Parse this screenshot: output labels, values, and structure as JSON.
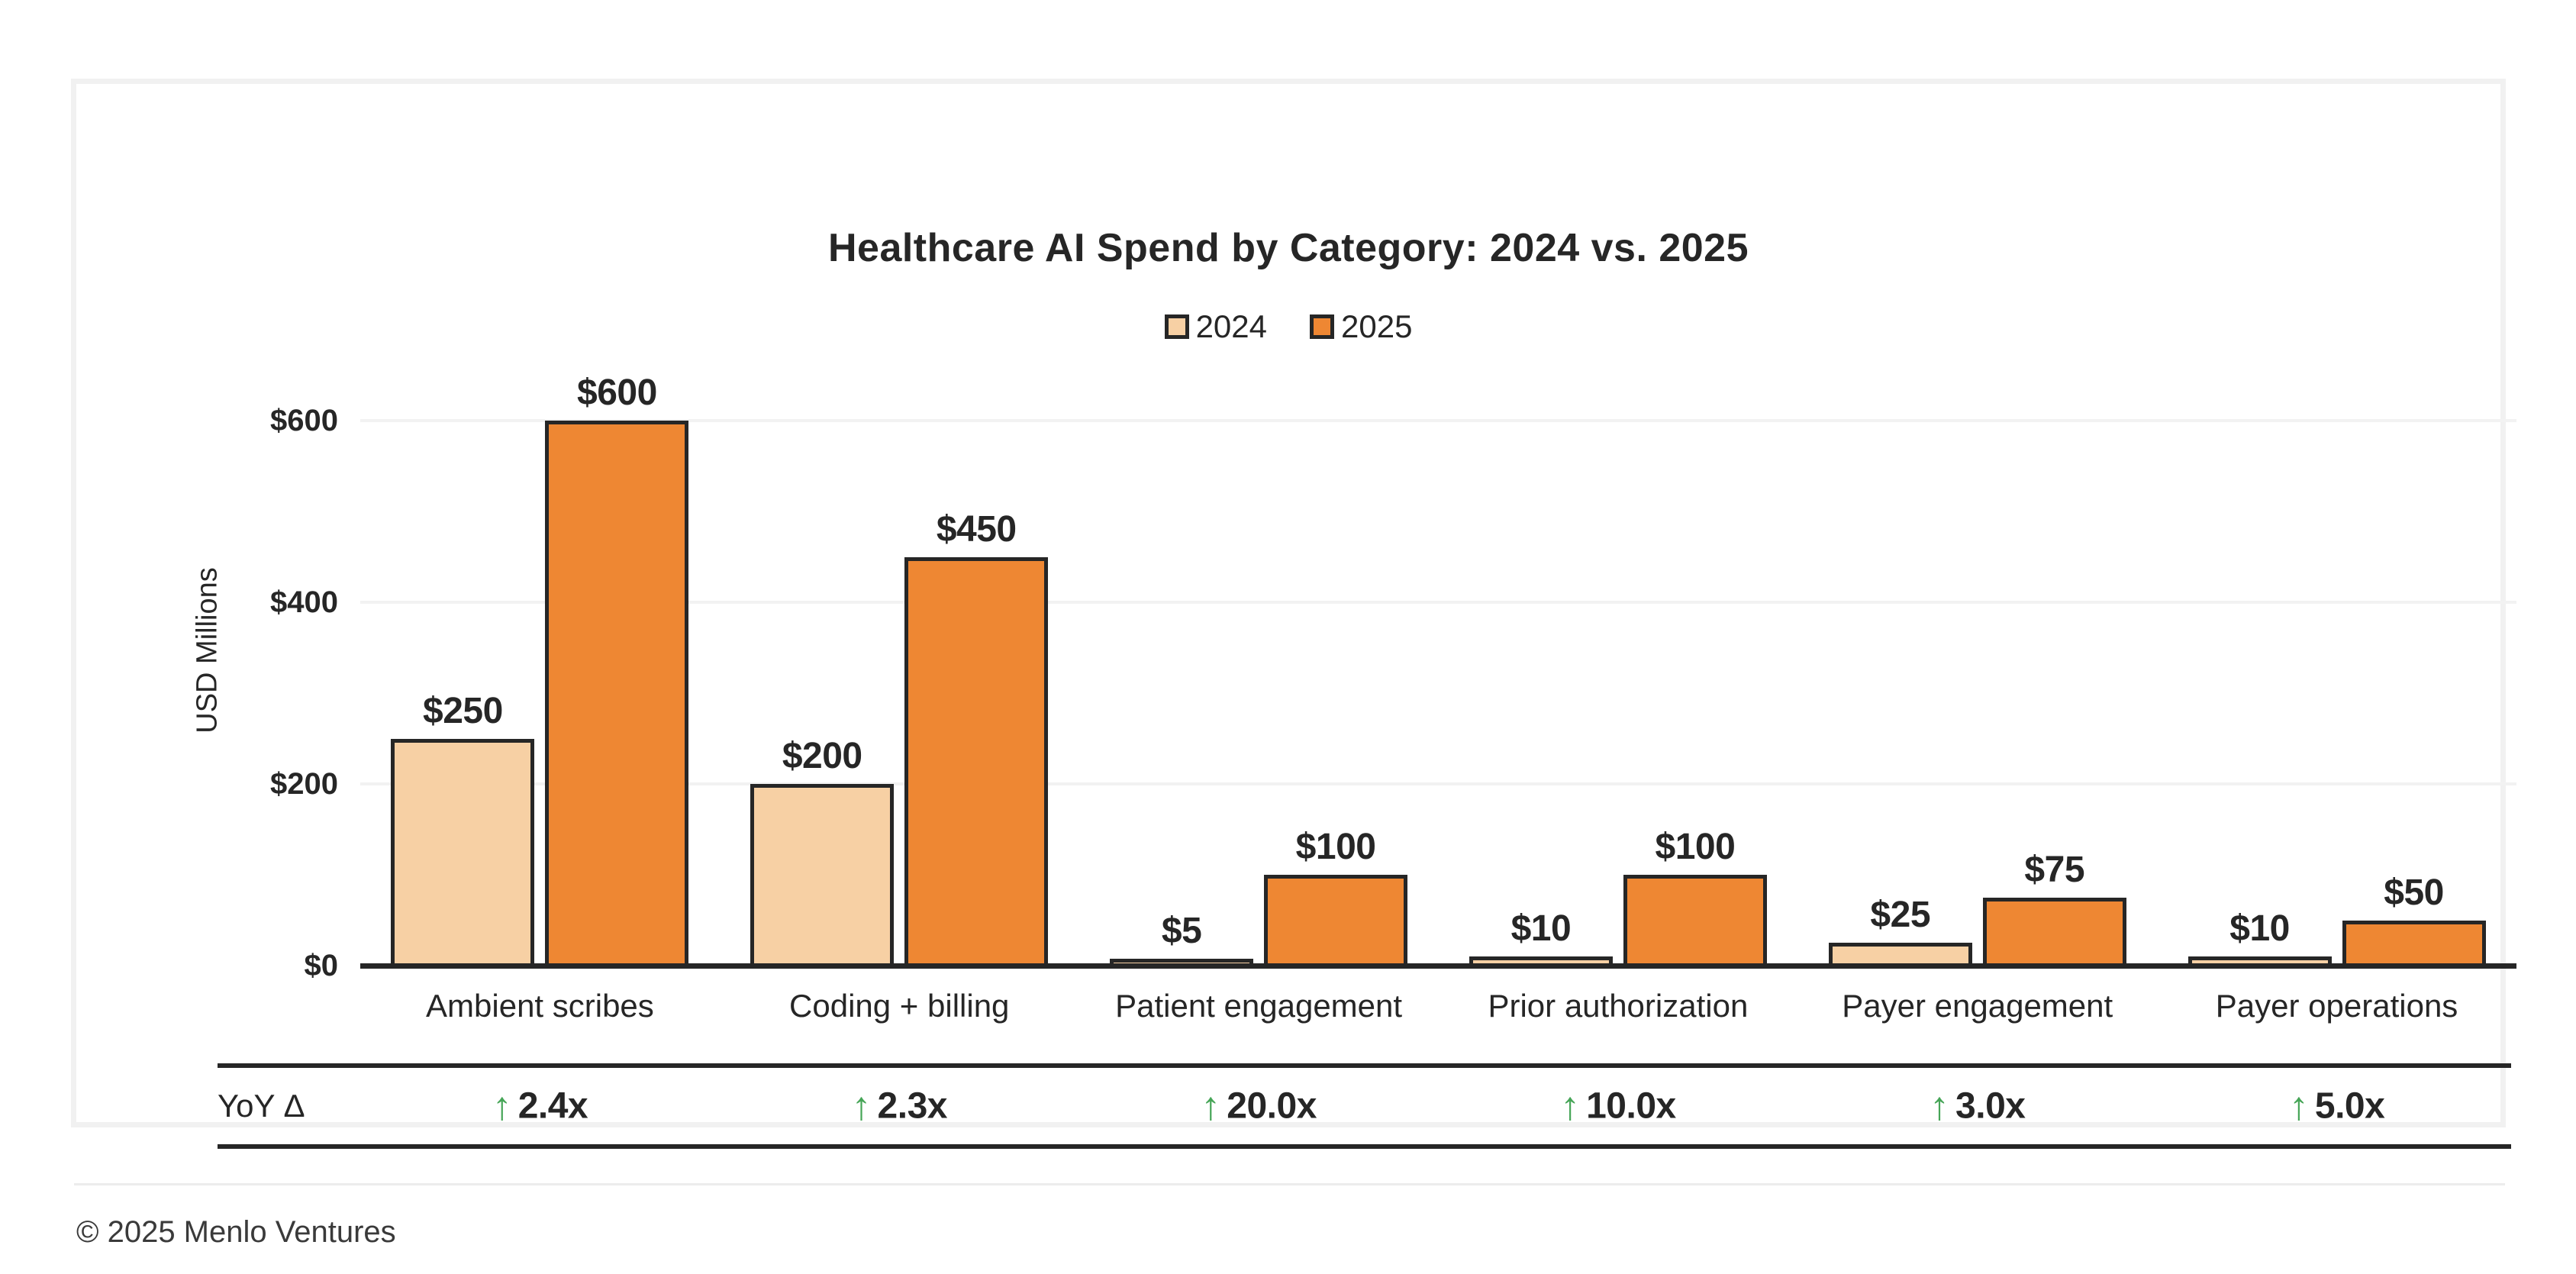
{
  "title": "Healthcare AI Spend by Category: 2024 vs. 2025",
  "legend": {
    "items": [
      {
        "label": "2024",
        "color": "#F7D0A4"
      },
      {
        "label": "2025",
        "color": "#EE8733"
      }
    ]
  },
  "y_axis": {
    "label": "USD Millions",
    "tick_labels": [
      "$0",
      "$200",
      "$400",
      "$600"
    ],
    "tick_values": [
      0,
      200,
      400,
      600
    ]
  },
  "yoy_row": {
    "label": "YoY Δ",
    "arrow_icon": "↑",
    "values": [
      "2.4x",
      "2.3x",
      "20.0x",
      "10.0x",
      "3.0x",
      "5.0x"
    ]
  },
  "footer": {
    "copyright": "© 2025 Menlo Ventures"
  },
  "colors": {
    "bar_2024": "#F7D0A4",
    "bar_2025": "#EE8733",
    "bar_border": "#262626",
    "gridline": "#F2F2F2",
    "text": "#262626",
    "green_arrow": "#46A557",
    "card_border": "#F1F1F1"
  },
  "chart_data": {
    "type": "bar",
    "title": "Healthcare AI Spend by Category: 2024 vs. 2025",
    "categories": [
      "Ambient scribes",
      "Coding + billing",
      "Patient engagement",
      "Prior authorization",
      "Payer engagement",
      "Payer operations"
    ],
    "series": [
      {
        "name": "2024",
        "color": "#F7D0A4",
        "values": [
          250,
          200,
          5,
          10,
          25,
          10
        ],
        "labels": [
          "$250",
          "$200",
          "$5",
          "$10",
          "$25",
          "$10"
        ]
      },
      {
        "name": "2025",
        "color": "#EE8733",
        "values": [
          600,
          450,
          100,
          100,
          75,
          50
        ],
        "labels": [
          "$600",
          "$450",
          "$100",
          "$100",
          "$75",
          "$50"
        ]
      }
    ],
    "xlabel": "",
    "ylabel": "USD Millions",
    "ylim": [
      0,
      600
    ],
    "yticks": [
      0,
      200,
      400,
      600
    ],
    "grid": true,
    "legend_position": "top-center",
    "yoy_delta": [
      "2.4x",
      "2.3x",
      "20.0x",
      "10.0x",
      "3.0x",
      "5.0x"
    ]
  }
}
